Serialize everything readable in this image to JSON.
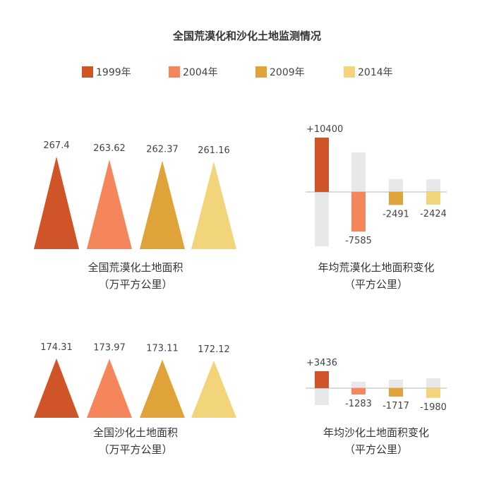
{
  "title": "全国荒漠化和沙化土地监测情况",
  "colors": [
    "#cf5427",
    "#f5855a",
    "#e0a33a",
    "#f2d47a"
  ],
  "bar_background_color": "#e8e8ea",
  "legend": [
    "1999年",
    "2004年",
    "2009年",
    "2014年"
  ],
  "chart_data": [
    {
      "type": "bar",
      "mark": "triangle",
      "title": "全国荒漠化土地面积",
      "unit": "（万平方公里）",
      "categories": [
        "1999年",
        "2004年",
        "2009年",
        "2014年"
      ],
      "values": [
        267.4,
        263.62,
        262.37,
        261.16
      ],
      "value_labels": [
        "267.4",
        "263.62",
        "262.37",
        "261.16"
      ]
    },
    {
      "type": "bar",
      "title": "年均荒漠化土地面积变化",
      "unit": "（平方公里）",
      "categories": [
        "1999年",
        "2004年",
        "2009年",
        "2014年"
      ],
      "values": [
        10400,
        -7585,
        -2491,
        -2424
      ],
      "value_labels": [
        "+10400",
        "-7585",
        "-2491",
        "-2424"
      ]
    },
    {
      "type": "bar",
      "mark": "triangle",
      "title": "全国沙化土地面积",
      "unit": "（万平方公里）",
      "categories": [
        "1999年",
        "2004年",
        "2009年",
        "2014年"
      ],
      "values": [
        174.31,
        173.97,
        173.11,
        172.12
      ],
      "value_labels": [
        "174.31",
        "173.97",
        "173.11",
        "172.12"
      ]
    },
    {
      "type": "bar",
      "title": "年均沙化土地面积变化",
      "unit": "（平方公里）",
      "categories": [
        "1999年",
        "2004年",
        "2009年",
        "2014年"
      ],
      "values": [
        3436,
        -1283,
        -1717,
        -1980
      ],
      "value_labels": [
        "+3436",
        "-1283",
        "-1717",
        "-1980"
      ]
    }
  ]
}
